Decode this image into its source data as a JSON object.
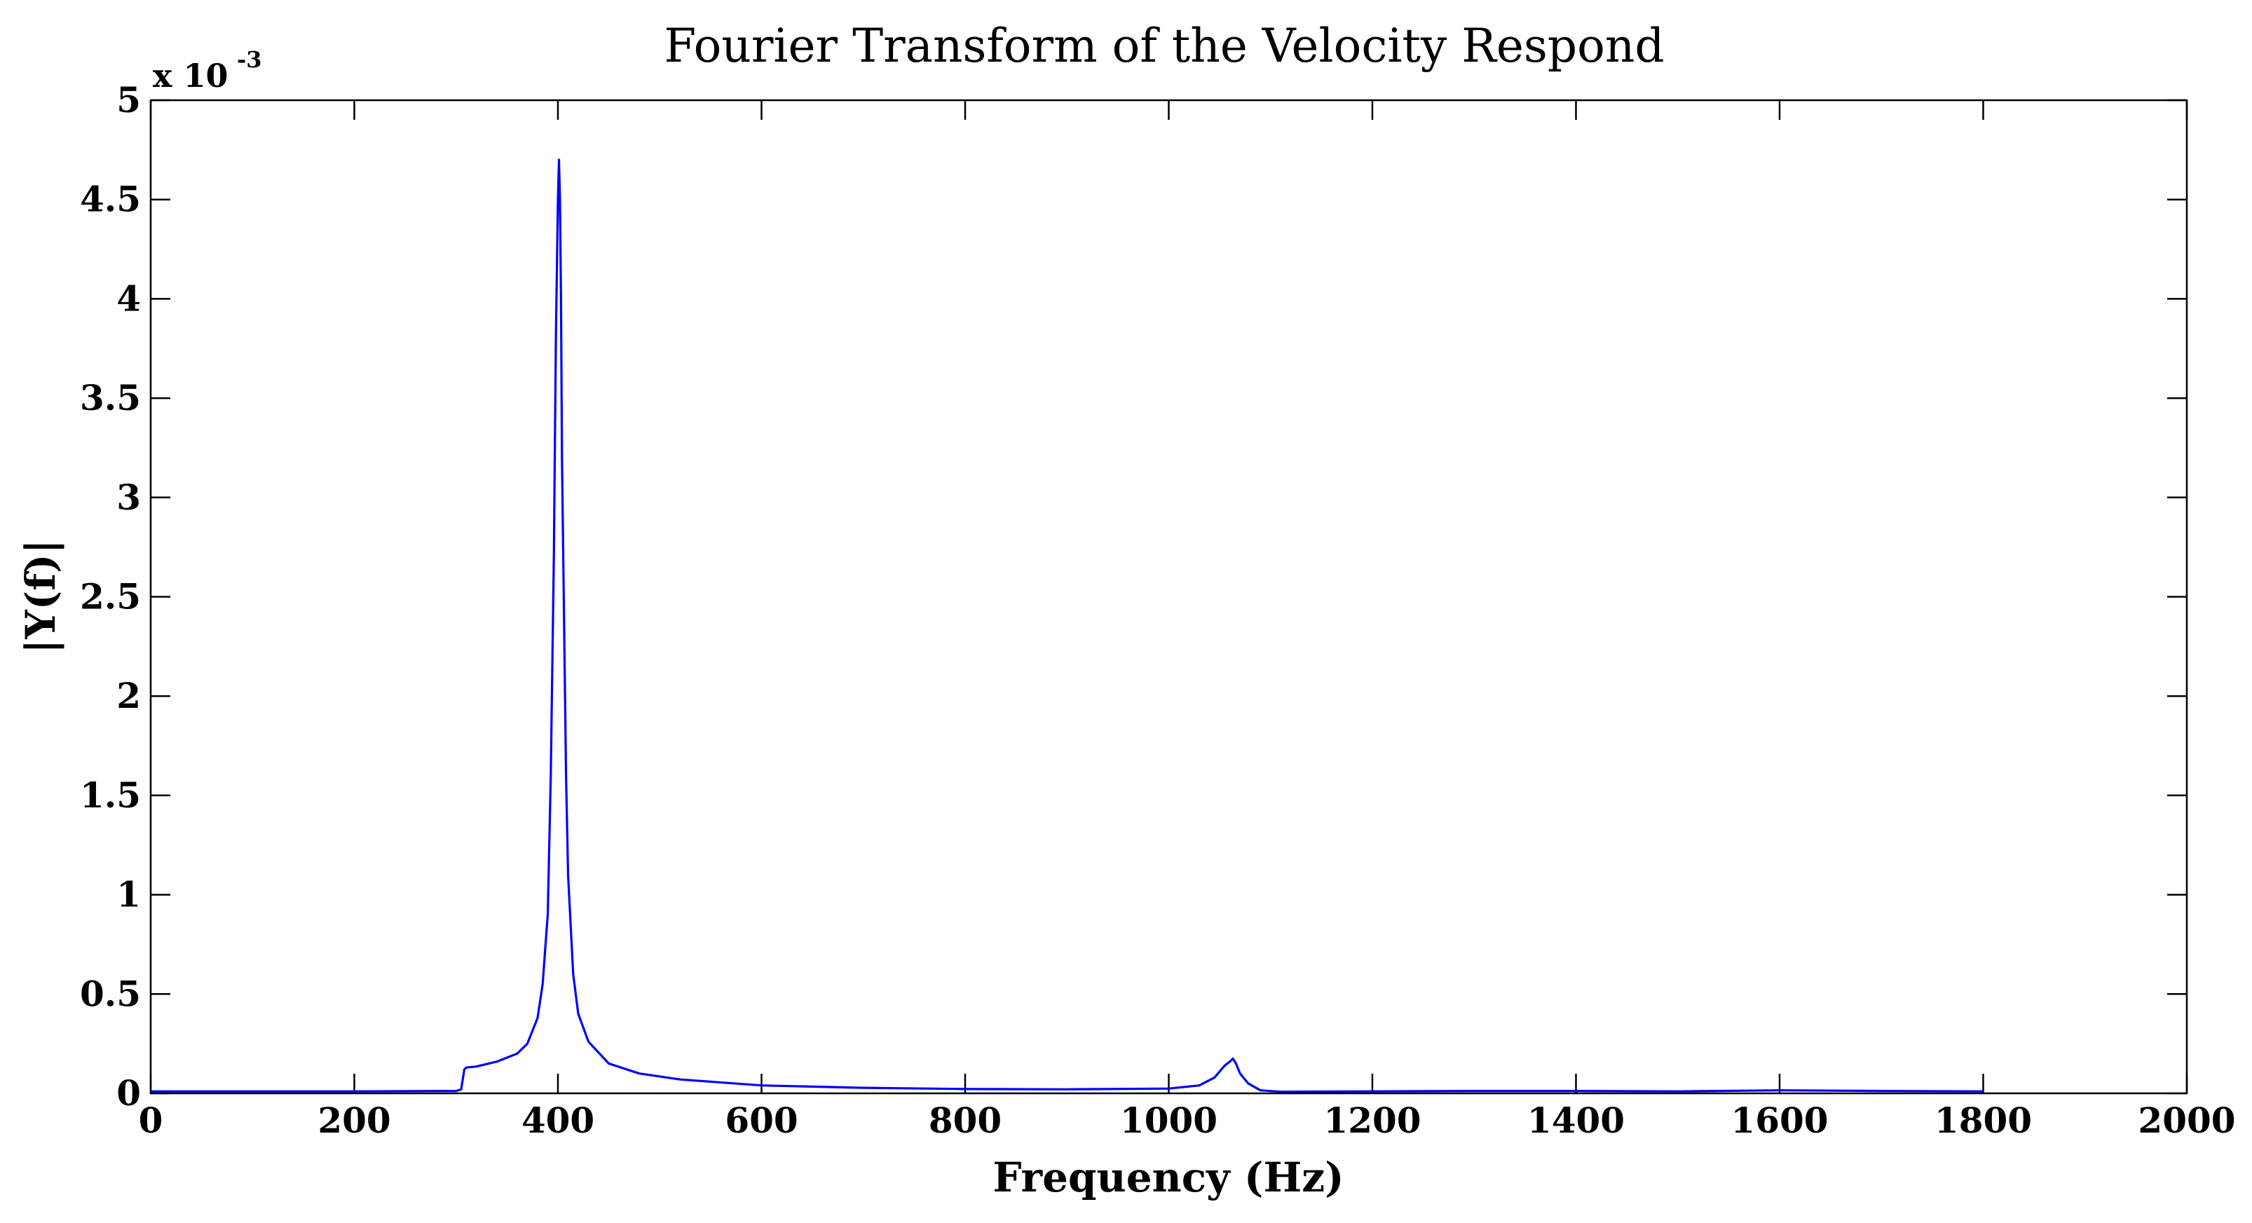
{
  "chart_data": {
    "type": "line",
    "title": "Fourier Transform of the Velocity Respond",
    "xlabel": "Frequency (Hz)",
    "ylabel": "|Y(f)|",
    "xlim": [
      0,
      2000
    ],
    "ylim": [
      0,
      0.005
    ],
    "y_multiplier": {
      "base": "x 10",
      "exponent": "-3"
    },
    "grid": false,
    "x_ticks": [
      0,
      200,
      400,
      600,
      800,
      1000,
      1200,
      1400,
      1600,
      1800,
      2000
    ],
    "x_tick_labels": [
      "0",
      "200",
      "400",
      "600",
      "800",
      "1000",
      "1200",
      "1400",
      "1600",
      "1800",
      "2000"
    ],
    "y_ticks": [
      0,
      0.0005,
      0.001,
      0.0015,
      0.002,
      0.0025,
      0.003,
      0.0035,
      0.004,
      0.0045,
      0.005
    ],
    "y_tick_labels": [
      "0",
      "0.5",
      "1",
      "1.5",
      "2",
      "2.5",
      "3",
      "3.5",
      "4",
      "4.5",
      "5"
    ],
    "series": [
      {
        "color": "#0000ff",
        "x": [
          0,
          100,
          200,
          300,
          305,
          308,
          310,
          320,
          340,
          360,
          370,
          380,
          385,
          390,
          393,
          396,
          398,
          400,
          401,
          402,
          403,
          404,
          406,
          408,
          410,
          415,
          420,
          430,
          450,
          480,
          520,
          600,
          700,
          800,
          900,
          1000,
          1030,
          1045,
          1055,
          1060,
          1063,
          1066,
          1070,
          1078,
          1090,
          1110,
          1200,
          1300,
          1400,
          1500,
          1600,
          1700,
          1800
        ],
        "y": [
          1e-05,
          1e-05,
          1e-05,
          1.2e-05,
          2e-05,
          0.00012,
          0.00013,
          0.000135,
          0.00016,
          0.0002,
          0.00025,
          0.00038,
          0.00055,
          0.0009,
          0.0016,
          0.0027,
          0.0038,
          0.0045,
          0.0047,
          0.0045,
          0.004,
          0.0032,
          0.0024,
          0.0016,
          0.0011,
          0.0006,
          0.0004,
          0.00026,
          0.00015,
          0.0001,
          7e-05,
          4e-05,
          2.8e-05,
          2.2e-05,
          2e-05,
          2.4e-05,
          4e-05,
          8e-05,
          0.00014,
          0.00016,
          0.000175,
          0.00015,
          0.0001,
          5e-05,
          1.5e-05,
          8e-06,
          1e-05,
          1.2e-05,
          1.2e-05,
          1e-05,
          1.5e-05,
          1.2e-05,
          1e-05
        ]
      }
    ]
  }
}
